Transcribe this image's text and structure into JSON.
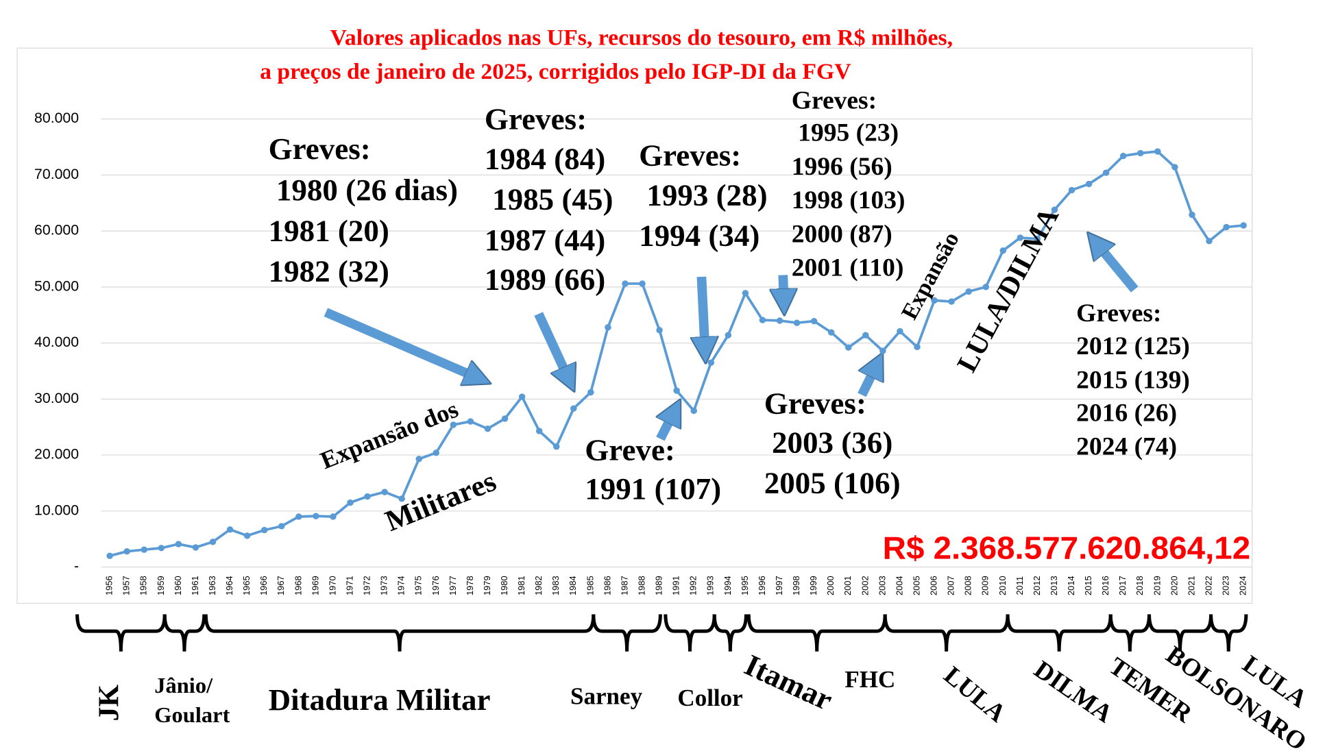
{
  "chart_data": {
    "type": "line",
    "title": [
      "Valores aplicados nas UFs, recursos do tesouro, em R$ milhões,",
      "a preços de janeiro de 2025, corrigidos pelo IGP-DI da FGV"
    ],
    "categories": [
      "1956",
      "1957",
      "1958",
      "1959",
      "1960",
      "1961",
      "1963",
      "1964",
      "1965",
      "1966",
      "1967",
      "1968",
      "1969",
      "1970",
      "1971",
      "1972",
      "1973",
      "1974",
      "1975",
      "1976",
      "1977",
      "1978",
      "1979",
      "1980",
      "1981",
      "1982",
      "1983",
      "1984",
      "1985",
      "1986",
      "1987",
      "1988",
      "1989",
      "1991",
      "1992",
      "1993",
      "1994",
      "1995",
      "1996",
      "1997",
      "1998",
      "1999",
      "2000",
      "2001",
      "2002",
      "2003",
      "2004",
      "2005",
      "2006",
      "2007",
      "2008",
      "2009",
      "2010",
      "2011",
      "2012",
      "2013",
      "2014",
      "2015",
      "2016",
      "2017",
      "2018",
      "2019",
      "2020",
      "2021",
      "2022",
      "2023",
      "2024"
    ],
    "values": [
      2000,
      2800,
      3100,
      3400,
      4100,
      3500,
      4500,
      6700,
      5600,
      6600,
      7300,
      9000,
      9100,
      9000,
      11500,
      12600,
      13400,
      12200,
      19300,
      20400,
      25400,
      26000,
      24700,
      26500,
      30400,
      24300,
      21500,
      28300,
      31200,
      42800,
      50600,
      50600,
      42300,
      31500,
      27900,
      36500,
      41400,
      48900,
      44100,
      44000,
      43600,
      43900,
      41900,
      39200,
      41400,
      38600,
      42100,
      39300,
      47600,
      47400,
      49200,
      50000,
      56500,
      58800,
      58600,
      63800,
      67300,
      68400,
      70400,
      73400,
      73900,
      74200,
      71400,
      62900,
      58200,
      60700,
      61000
    ],
    "color": "#5b9bd5",
    "ylim": [
      0,
      80000
    ],
    "yticks": [
      {
        "value": 0,
        "label": "-"
      },
      {
        "value": 10000,
        "label": "10.000"
      },
      {
        "value": 20000,
        "label": "20.000"
      },
      {
        "value": 30000,
        "label": "30.000"
      },
      {
        "value": 40000,
        "label": "40.000"
      },
      {
        "value": 50000,
        "label": "50.000"
      },
      {
        "value": 60000,
        "label": "60.000"
      },
      {
        "value": 70000,
        "label": "70.000"
      },
      {
        "value": 80000,
        "label": "80.000"
      }
    ],
    "grid": true,
    "total_label": "R$ 2.368.577.620.864,12",
    "annotations": [
      [
        "Greves:",
        " 1980 (26 dias)",
        "1981 (20)",
        "1982 (32)"
      ],
      [
        "Greves:",
        "1984 (84)",
        " 1985 (45)",
        "1987 (44)",
        "1989 (66)"
      ],
      [
        "Greves:",
        " 1993 (28)",
        "1994 (34)"
      ],
      [
        "Greves:",
        " 1995 (23)",
        "1996 (56)",
        "1998 (103)",
        "2000 (87)",
        "2001 (110)"
      ],
      [
        "Greve:",
        "1991 (107)"
      ],
      [
        "Greves:",
        " 2003 (36)",
        "2005 (106)"
      ],
      [
        "Greves:",
        "2012 (125)",
        "2015 (139)",
        "2016 (26)",
        "2024 (74)"
      ]
    ],
    "rotated_labels": [
      "Expansão dos",
      "Militares",
      "Expansão",
      "LULA/DILMA"
    ],
    "periods": [
      "JK",
      "Jânio/",
      "Goulart",
      "Ditadura Militar",
      "Sarney",
      "Collor",
      "Itamar",
      "FHC",
      "LULA",
      "DILMA",
      "TEMER",
      "BOLSONARO",
      "LULA"
    ]
  }
}
